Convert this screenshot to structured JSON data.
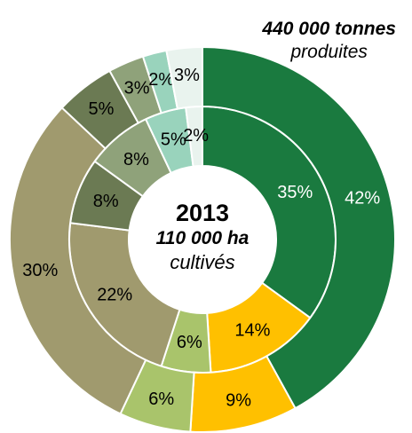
{
  "chart_data": {
    "type": "donut",
    "center": {
      "year": "2013",
      "area": "110 000 ha",
      "area_note": "cultivés"
    },
    "top_note": {
      "value": "440 000 tonnes",
      "note": "produites"
    },
    "series": [
      {
        "ring": "inner",
        "values": [
          35,
          14,
          6,
          22,
          8,
          8,
          5,
          2
        ],
        "labels": [
          "35%",
          "14%",
          "6%",
          "22%",
          "8%",
          "8%",
          "5%",
          "2%"
        ]
      },
      {
        "ring": "outer",
        "values": [
          42,
          9,
          6,
          30,
          5,
          3,
          2,
          3
        ],
        "labels": [
          "42%",
          "9%",
          "6%",
          "30%",
          "5%",
          "3%",
          "2%",
          "3%"
        ]
      }
    ],
    "colors": [
      "#1a7a3f",
      "#ffc000",
      "#a9c46b",
      "#a09a6e",
      "#6b7a53",
      "#8fa27a",
      "#99d3bc",
      "#e9f3ee"
    ]
  }
}
